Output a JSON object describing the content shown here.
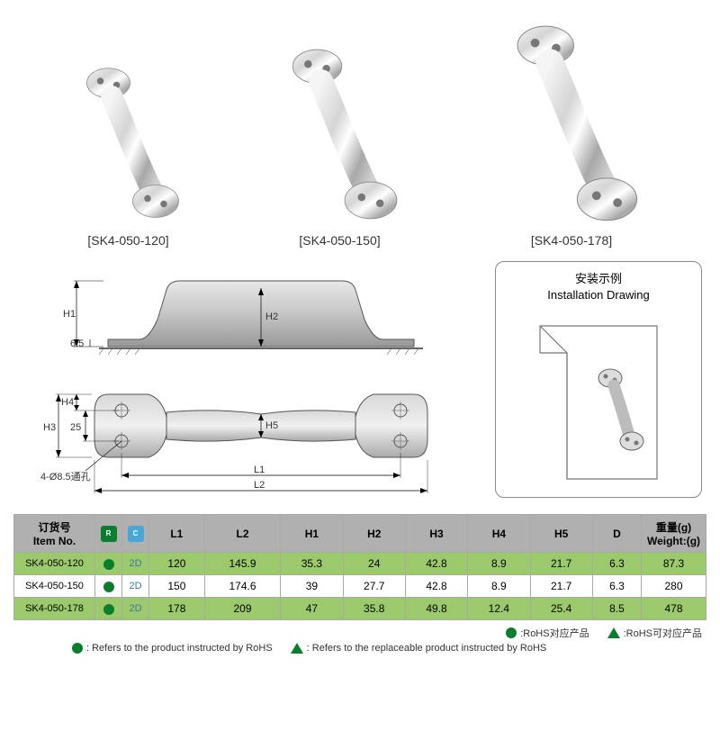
{
  "products": [
    {
      "label": "[SK4-050-120]",
      "scale": 0.75
    },
    {
      "label": "[SK4-050-150]",
      "scale": 0.88
    },
    {
      "label": "[SK4-050-178]",
      "scale": 1.0
    }
  ],
  "installation": {
    "title_zh": "安装示例",
    "title_en": "Installation Drawing"
  },
  "dimensions": {
    "side_view": {
      "H1": "H1",
      "H2": "H2",
      "base": "6.5"
    },
    "top_view": {
      "H3": "H3",
      "H4": "H4",
      "H5": "H5",
      "L1": "L1",
      "L2": "L2",
      "spacing": "25",
      "hole_note": "4-Ø8.5通孔"
    }
  },
  "table": {
    "headers": {
      "item_zh": "订货号",
      "item_en": "Item No.",
      "rohs_icon": "RoHS",
      "cad_icon": "CAD",
      "L1": "L1",
      "L2": "L2",
      "H1": "H1",
      "H2": "H2",
      "H3": "H3",
      "H4": "H4",
      "H5": "H5",
      "D": "D",
      "weight_zh": "重量(g)",
      "weight_en": "Weight:(g)"
    },
    "rows": [
      {
        "item": "SK4-050-120",
        "cad": "2D",
        "L1": "120",
        "L2": "145.9",
        "H1": "35.3",
        "H2": "24",
        "H3": "42.8",
        "H4": "8.9",
        "H5": "21.7",
        "D": "6.3",
        "weight": "87.3",
        "bg": "green"
      },
      {
        "item": "SK4-050-150",
        "cad": "2D",
        "L1": "150",
        "L2": "174.6",
        "H1": "39",
        "H2": "27.7",
        "H3": "42.8",
        "H4": "8.9",
        "H5": "21.7",
        "D": "6.3",
        "weight": "280",
        "bg": "white"
      },
      {
        "item": "SK4-050-178",
        "cad": "2D",
        "L1": "178",
        "L2": "209",
        "H1": "47",
        "H2": "35.8",
        "H3": "49.8",
        "H4": "12.4",
        "H5": "25.4",
        "D": "8.5",
        "weight": "478",
        "bg": "green"
      }
    ]
  },
  "legend": {
    "dot_zh": ":RoHS对应产品",
    "tri_zh": ":RoHS可对应产品",
    "dot_en": ": Refers to the product instructed by RoHS",
    "tri_en": ": Refers to the replaceable product instructed by RoHS"
  },
  "colors": {
    "handle_light": "#e8e8e8",
    "handle_mid": "#c0c0c0",
    "handle_dark": "#888",
    "table_header_bg": "#b0b0b0",
    "row_green_bg": "#9cc96b",
    "brand_green": "#0a7d2e",
    "cad_blue": "#4aa6d6"
  }
}
